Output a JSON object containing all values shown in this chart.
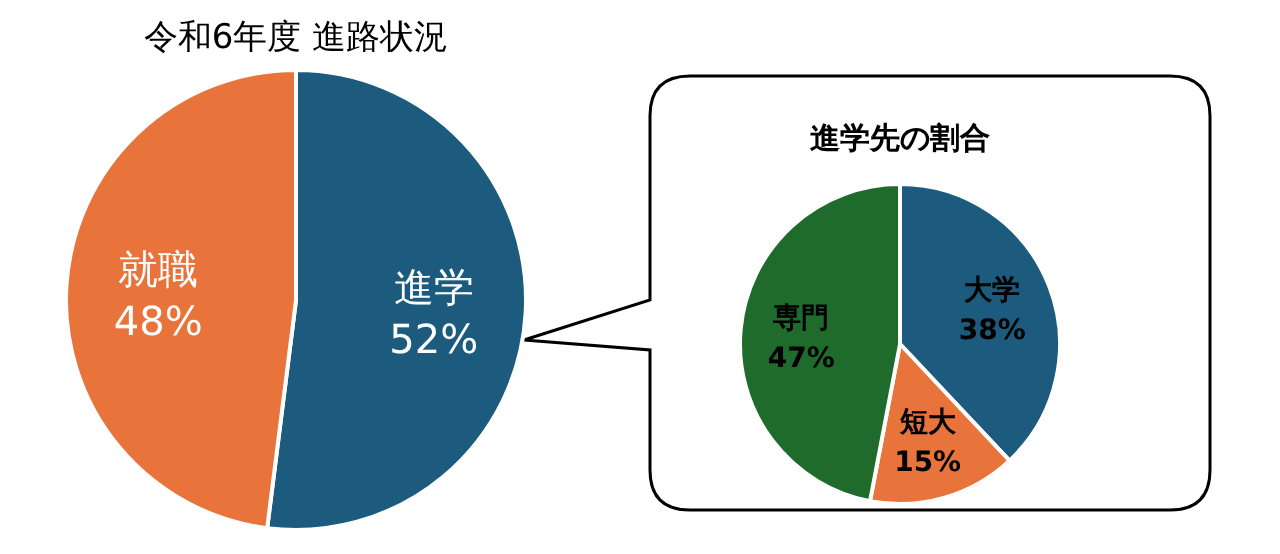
{
  "chart_data": [
    {
      "type": "pie",
      "title": "令和6年度  進路状況",
      "categories": [
        "進学",
        "就職"
      ],
      "values": [
        52,
        48
      ],
      "value_labels": [
        "52%",
        "48%"
      ],
      "colors": [
        "#1d5b7e",
        "#e8743b"
      ]
    },
    {
      "type": "pie",
      "title": "進学先の割合",
      "categories": [
        "大学",
        "短大",
        "専門"
      ],
      "values": [
        38,
        15,
        47
      ],
      "value_labels": [
        "38%",
        "15%",
        "47%"
      ],
      "colors": [
        "#1d5b7e",
        "#e8743b",
        "#1e6b2c"
      ]
    }
  ]
}
